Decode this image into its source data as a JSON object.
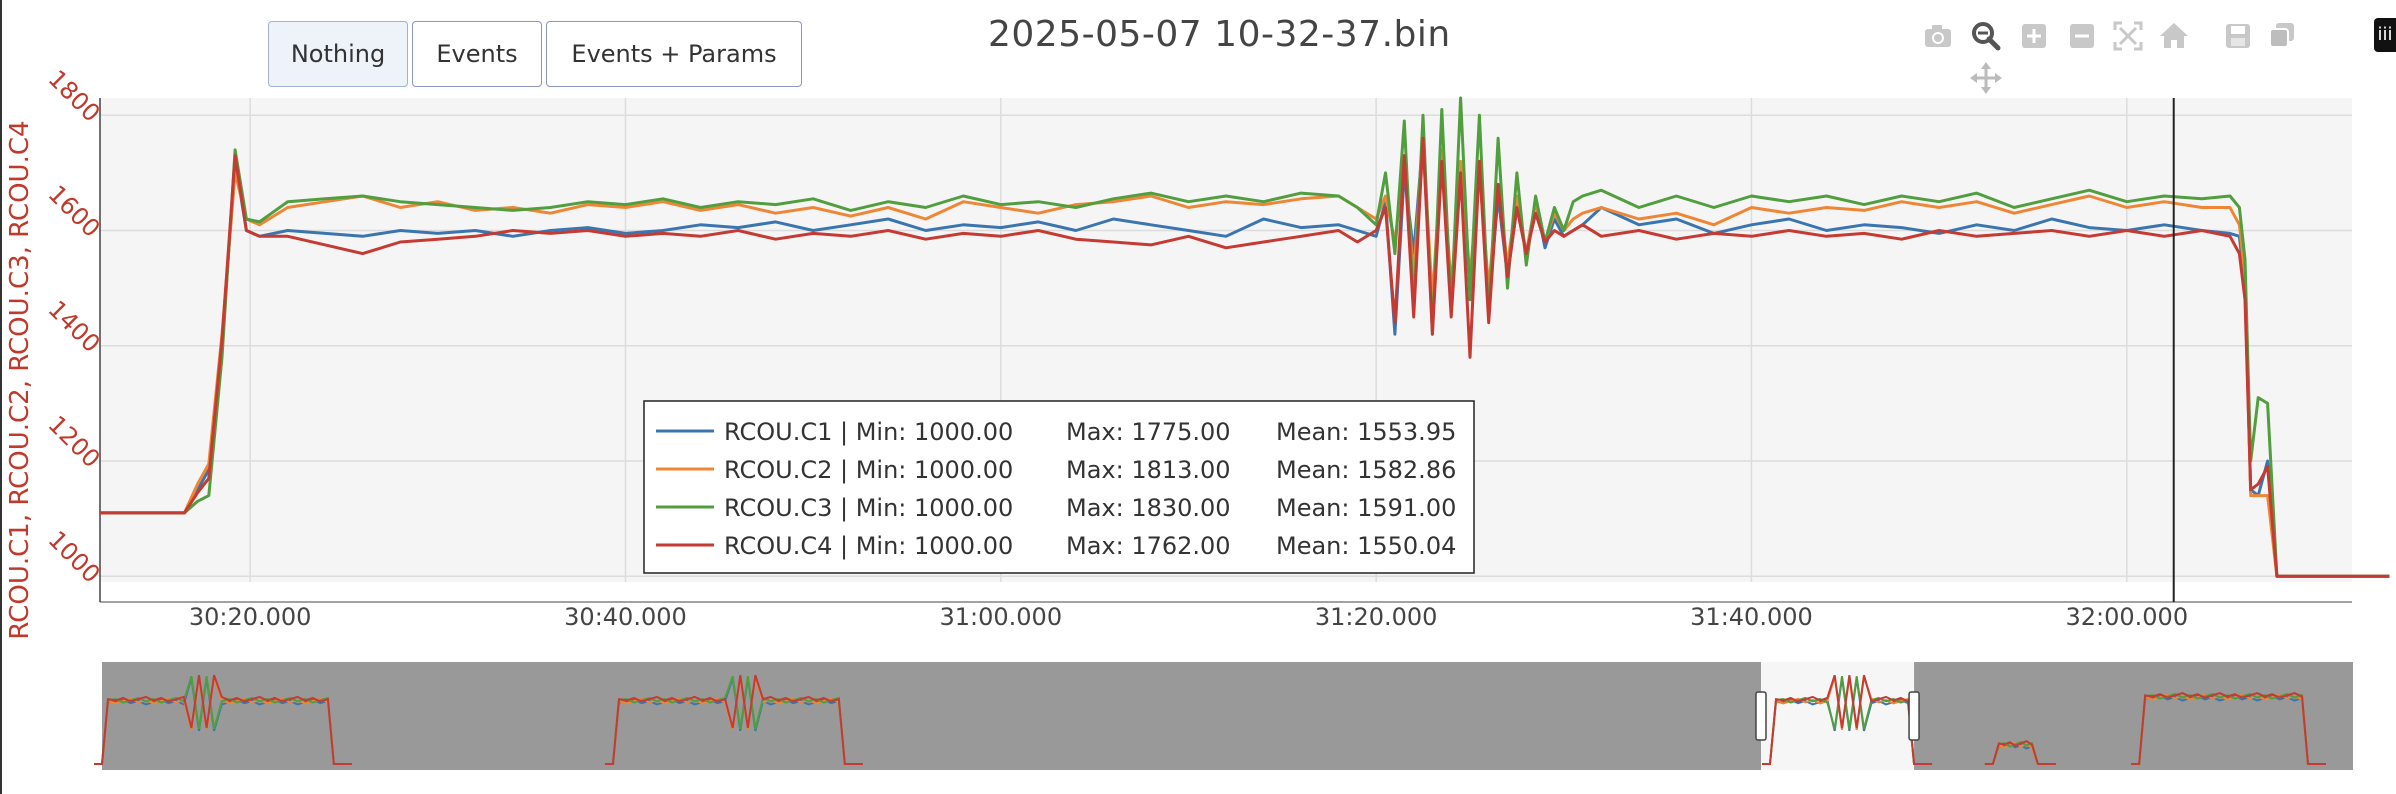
{
  "window_title": "2025-05-07 10-32-37.bin",
  "buttons": [
    {
      "label": "Nothing",
      "active": true
    },
    {
      "label": "Events",
      "active": false
    },
    {
      "label": "Events + Params",
      "active": false
    }
  ],
  "toolbar_icons": [
    "camera-icon",
    "zoom-icon",
    "zoom-in-icon",
    "zoom-out-icon",
    "autoscale-icon",
    "home-icon",
    "save-icon",
    "copy-icon",
    "pan-icon"
  ],
  "edge_tag_label": "iii",
  "colors": {
    "c1": "#3b75af",
    "c2": "#ef8636",
    "c3": "#519e3e",
    "c4": "#c53a32",
    "axis_text": "#c0392b",
    "plot_bg": "#f5f5f5",
    "range_bg": "#999999"
  },
  "chart_data": {
    "type": "line",
    "title": "2025-05-07 10-32-37.bin",
    "ylabel": "RCOU.C1, RCOU.C2, RCOU.C3, RCOU.C4",
    "xlabel": "",
    "xlim": [
      "30:12.000",
      "32:12.000"
    ],
    "ylim": [
      990,
      1830
    ],
    "x_ticks": [
      "30:20.000",
      "30:40.000",
      "31:00.000",
      "31:20.000",
      "31:40.000",
      "32:00.000"
    ],
    "y_ticks": [
      1000,
      1200,
      1400,
      1600,
      1800
    ],
    "cursor_x": "32:02.500",
    "legend": [
      {
        "name": "RCOU.C1",
        "min": "1000.00",
        "max": "1775.00",
        "mean": "1553.95",
        "text": "RCOU.C1 | Min: 1000.00",
        "max_text": "Max: 1775.00",
        "mean_text": "Mean: 1553.95"
      },
      {
        "name": "RCOU.C2",
        "min": "1000.00",
        "max": "1813.00",
        "mean": "1582.86",
        "text": "RCOU.C2 | Min: 1000.00",
        "max_text": "Max: 1813.00",
        "mean_text": "Mean: 1582.86"
      },
      {
        "name": "RCOU.C3",
        "min": "1000.00",
        "max": "1830.00",
        "mean": "1591.00",
        "text": "RCOU.C3 | Min: 1000.00",
        "max_text": "Max: 1830.00",
        "mean_text": "Mean: 1591.00"
      },
      {
        "name": "RCOU.C4",
        "min": "1000.00",
        "max": "1762.00",
        "mean": "1550.04",
        "text": "RCOU.C4 | Min: 1000.00",
        "max_text": "Max: 1762.00",
        "mean_text": "Mean: 1550.04"
      }
    ],
    "legend_placement": "center-bottom",
    "grid": true,
    "series_note_units": "seconds since 30:00",
    "series": [
      {
        "name": "RCOU.C1",
        "key": "c1",
        "x": [
          12,
          16.5,
          17.2,
          17.8,
          18.5,
          19.2,
          19.8,
          20.5,
          22,
          24,
          26,
          28,
          30,
          32,
          34,
          36,
          38,
          40,
          42,
          44,
          46,
          48,
          50,
          52,
          54,
          56,
          58,
          60,
          62,
          64,
          66,
          68,
          70,
          72,
          74,
          76,
          78,
          79,
          80,
          80.5,
          81,
          81.5,
          82,
          82.5,
          83,
          83.5,
          84,
          84.5,
          85,
          85.5,
          86,
          86.5,
          87,
          87.5,
          88,
          88.5,
          89,
          89.5,
          90,
          90.5,
          91,
          92,
          94,
          96,
          98,
          100,
          102,
          104,
          106,
          108,
          110,
          112,
          114,
          116,
          118,
          120,
          122,
          124,
          125.5,
          126,
          126.3,
          126.6,
          127,
          127.5,
          128,
          129,
          134
        ],
        "y": [
          1110,
          1110,
          1150,
          1185,
          1400,
          1720,
          1600,
          1590,
          1600,
          1595,
          1590,
          1600,
          1595,
          1600,
          1590,
          1600,
          1605,
          1595,
          1600,
          1610,
          1605,
          1615,
          1600,
          1610,
          1620,
          1600,
          1610,
          1605,
          1615,
          1600,
          1620,
          1610,
          1600,
          1590,
          1620,
          1605,
          1610,
          1600,
          1590,
          1650,
          1420,
          1700,
          1560,
          1760,
          1440,
          1740,
          1480,
          1700,
          1500,
          1720,
          1470,
          1660,
          1520,
          1640,
          1560,
          1650,
          1570,
          1620,
          1590,
          1600,
          1610,
          1640,
          1610,
          1620,
          1595,
          1610,
          1620,
          1600,
          1610,
          1605,
          1595,
          1610,
          1600,
          1620,
          1605,
          1600,
          1610,
          1600,
          1595,
          1590,
          1500,
          1150,
          1140,
          1200,
          1000,
          1000,
          1000
        ]
      },
      {
        "name": "RCOU.C2",
        "key": "c2",
        "x": [
          12,
          16.5,
          17.2,
          17.8,
          18.5,
          19.2,
          19.8,
          20.5,
          22,
          24,
          26,
          28,
          30,
          32,
          34,
          36,
          38,
          40,
          42,
          44,
          46,
          48,
          50,
          52,
          54,
          56,
          58,
          60,
          62,
          64,
          66,
          68,
          70,
          72,
          74,
          76,
          78,
          79,
          80,
          80.5,
          81,
          81.5,
          82,
          82.5,
          83,
          83.5,
          84,
          84.5,
          85,
          85.5,
          86,
          86.5,
          87,
          87.5,
          88,
          88.5,
          89,
          89.5,
          90,
          90.5,
          91,
          92,
          94,
          96,
          98,
          100,
          102,
          104,
          106,
          108,
          110,
          112,
          114,
          116,
          118,
          120,
          122,
          124,
          125.5,
          126,
          126.3,
          126.6,
          127,
          127.5,
          128,
          129,
          134
        ],
        "y": [
          1110,
          1110,
          1160,
          1195,
          1420,
          1700,
          1620,
          1610,
          1640,
          1650,
          1660,
          1640,
          1650,
          1635,
          1640,
          1630,
          1645,
          1640,
          1650,
          1635,
          1645,
          1630,
          1640,
          1625,
          1640,
          1620,
          1650,
          1640,
          1630,
          1645,
          1650,
          1660,
          1640,
          1650,
          1645,
          1655,
          1660,
          1640,
          1620,
          1660,
          1580,
          1720,
          1520,
          1760,
          1480,
          1740,
          1500,
          1720,
          1520,
          1700,
          1500,
          1680,
          1540,
          1660,
          1560,
          1650,
          1580,
          1630,
          1600,
          1620,
          1630,
          1640,
          1620,
          1630,
          1610,
          1640,
          1630,
          1640,
          1635,
          1650,
          1640,
          1650,
          1630,
          1645,
          1660,
          1640,
          1650,
          1640,
          1640,
          1610,
          1520,
          1140,
          1140,
          1140,
          1000,
          1000,
          1000
        ]
      },
      {
        "name": "RCOU.C3",
        "key": "c3",
        "x": [
          12,
          16.5,
          17.2,
          17.8,
          18.5,
          19.2,
          19.8,
          20.5,
          22,
          24,
          26,
          28,
          30,
          32,
          34,
          36,
          38,
          40,
          42,
          44,
          46,
          48,
          50,
          52,
          54,
          56,
          58,
          60,
          62,
          64,
          66,
          68,
          70,
          72,
          74,
          76,
          78,
          79,
          80,
          80.5,
          81,
          81.5,
          82,
          82.5,
          83,
          83.5,
          84,
          84.5,
          85,
          85.5,
          86,
          86.5,
          87,
          87.5,
          88,
          88.5,
          89,
          89.5,
          90,
          90.5,
          91,
          92,
          94,
          96,
          98,
          100,
          102,
          104,
          106,
          108,
          110,
          112,
          114,
          116,
          118,
          120,
          122,
          124,
          125.5,
          126,
          126.3,
          126.6,
          127,
          127.5,
          128,
          129,
          134
        ],
        "y": [
          1110,
          1110,
          1130,
          1140,
          1380,
          1740,
          1620,
          1615,
          1650,
          1655,
          1660,
          1650,
          1645,
          1640,
          1635,
          1640,
          1650,
          1645,
          1655,
          1640,
          1650,
          1645,
          1655,
          1635,
          1650,
          1640,
          1660,
          1645,
          1650,
          1640,
          1655,
          1665,
          1650,
          1660,
          1650,
          1665,
          1660,
          1640,
          1610,
          1700,
          1560,
          1790,
          1460,
          1800,
          1420,
          1810,
          1460,
          1830,
          1480,
          1800,
          1450,
          1760,
          1500,
          1700,
          1540,
          1660,
          1580,
          1640,
          1600,
          1650,
          1660,
          1670,
          1640,
          1660,
          1640,
          1660,
          1650,
          1660,
          1645,
          1660,
          1650,
          1665,
          1640,
          1655,
          1670,
          1650,
          1660,
          1655,
          1660,
          1640,
          1550,
          1200,
          1310,
          1300,
          1000,
          1000,
          1000
        ]
      },
      {
        "name": "RCOU.C4",
        "key": "c4",
        "x": [
          12,
          16.5,
          17.2,
          17.8,
          18.5,
          19.2,
          19.8,
          20.5,
          22,
          24,
          26,
          28,
          30,
          32,
          34,
          36,
          38,
          40,
          42,
          44,
          46,
          48,
          50,
          52,
          54,
          56,
          58,
          60,
          62,
          64,
          66,
          68,
          70,
          72,
          74,
          76,
          78,
          79,
          80,
          80.5,
          81,
          81.5,
          82,
          82.5,
          83,
          83.5,
          84,
          84.5,
          85,
          85.5,
          86,
          86.5,
          87,
          87.5,
          88,
          88.5,
          89,
          89.5,
          90,
          90.5,
          91,
          92,
          94,
          96,
          98,
          100,
          102,
          104,
          106,
          108,
          110,
          112,
          114,
          116,
          118,
          120,
          122,
          124,
          125.5,
          126,
          126.3,
          126.6,
          127,
          127.5,
          128,
          129,
          134
        ],
        "y": [
          1110,
          1110,
          1145,
          1170,
          1410,
          1730,
          1600,
          1590,
          1590,
          1575,
          1560,
          1580,
          1585,
          1590,
          1600,
          1595,
          1600,
          1590,
          1595,
          1590,
          1600,
          1585,
          1595,
          1590,
          1600,
          1585,
          1595,
          1590,
          1600,
          1585,
          1580,
          1575,
          1590,
          1570,
          1580,
          1590,
          1600,
          1580,
          1600,
          1640,
          1440,
          1730,
          1450,
          1760,
          1420,
          1720,
          1450,
          1700,
          1380,
          1720,
          1440,
          1680,
          1520,
          1640,
          1560,
          1630,
          1580,
          1600,
          1590,
          1600,
          1610,
          1590,
          1600,
          1585,
          1595,
          1590,
          1600,
          1590,
          1595,
          1585,
          1600,
          1590,
          1595,
          1600,
          1590,
          1600,
          1590,
          1600,
          1590,
          1560,
          1480,
          1150,
          1160,
          1190,
          1000,
          1000,
          1000
        ]
      }
    ]
  },
  "range_slider": {
    "flights": [
      {
        "start": 0.0,
        "end": 0.103,
        "level": 0.66,
        "spike_at": 0.045
      },
      {
        "start": 0.227,
        "end": 0.33,
        "level": 0.66,
        "spike_at": 0.285
      },
      {
        "start": 0.84,
        "end": 0.86,
        "level": 0.2,
        "spike_at": -1
      },
      {
        "start": 0.741,
        "end": 0.805,
        "level": 0.66,
        "spike_at": 0.777
      },
      {
        "start": 0.905,
        "end": 0.98,
        "level": 0.7,
        "spike_at": -1
      }
    ],
    "window_start": 0.737,
    "window_end": 0.805
  }
}
